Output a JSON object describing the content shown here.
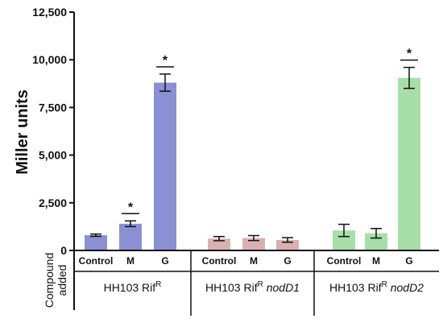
{
  "chart_data": {
    "type": "bar",
    "ylabel": "Miller units",
    "ylim": [
      0,
      12500
    ],
    "yticks": [
      "0",
      "2,500",
      "5,000",
      "7,500",
      "10,000",
      "12,500"
    ],
    "row_label": [
      "Compound",
      "added"
    ],
    "groups": [
      {
        "strain": "HH103 Rif",
        "strain_sup": "R",
        "strain_mutant": "",
        "color": "#8b90d2",
        "categories": [
          "Control",
          "M",
          "G"
        ],
        "values": [
          800,
          1400,
          8800
        ],
        "errors": [
          60,
          150,
          450
        ],
        "significant": [
          false,
          true,
          true
        ],
        "sig_mark": "*"
      },
      {
        "strain": "HH103 Rif",
        "strain_sup": "R",
        "strain_mutant": "nodD1",
        "color": "#dab1b1",
        "categories": [
          "Control",
          "M",
          "G"
        ],
        "values": [
          620,
          650,
          550
        ],
        "errors": [
          110,
          130,
          120
        ],
        "significant": [
          false,
          false,
          false
        ],
        "sig_mark": "*"
      },
      {
        "strain": "HH103 Rif",
        "strain_sup": "R",
        "strain_mutant": "nodD2",
        "color": "#a8deaa",
        "categories": [
          "Control",
          "M",
          "G"
        ],
        "values": [
          1050,
          900,
          9050
        ],
        "errors": [
          320,
          250,
          550
        ],
        "significant": [
          false,
          false,
          true
        ],
        "sig_mark": "*"
      }
    ]
  }
}
